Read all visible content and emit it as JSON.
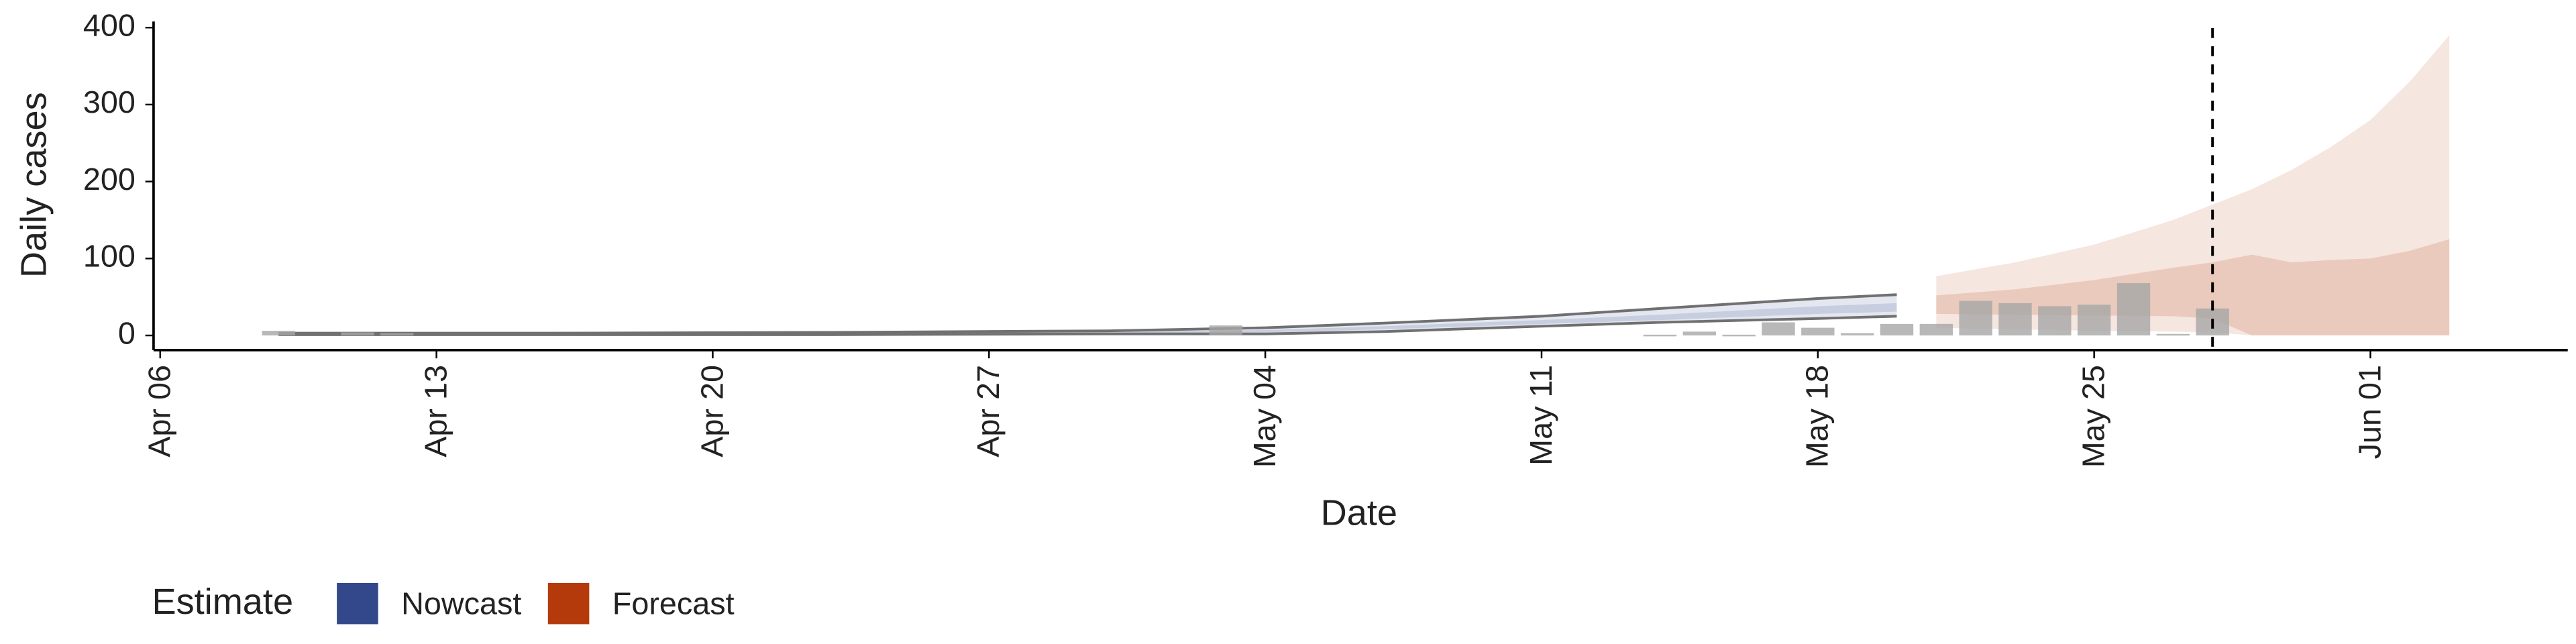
{
  "chart_data": {
    "type": "combo",
    "xlabel": "Date",
    "ylabel": "Daily cases",
    "legend_title": "Estimate",
    "xlim": [
      "Apr 06",
      "Jun 06"
    ],
    "xticks": [
      "Apr 06",
      "Apr 13",
      "Apr 20",
      "Apr 27",
      "May 04",
      "May 11",
      "May 18",
      "May 25",
      "Jun 01"
    ],
    "ylim": [
      -19,
      408
    ],
    "yticks": [
      0,
      100,
      200,
      300,
      400
    ],
    "vline": "May 28",
    "observed": {
      "color": "#a6a6a6",
      "x": [
        "Apr 09",
        "Apr 11",
        "Apr 12",
        "May 03",
        "May 14",
        "May 15",
        "May 16",
        "May 17",
        "May 18",
        "May 19",
        "May 20",
        "May 21",
        "May 22",
        "May 23",
        "May 24",
        "May 25",
        "May 26",
        "May 27",
        "May 28"
      ],
      "values": [
        6,
        4,
        3,
        13,
        1,
        5,
        1,
        17,
        10,
        3,
        15,
        15,
        45,
        42,
        38,
        40,
        68,
        2,
        35
      ]
    },
    "series": [
      {
        "name": "Nowcast",
        "color": "#32488a",
        "bound_color": "#707070",
        "x": [
          "Apr 09",
          "Apr 16",
          "Apr 23",
          "Apr 30",
          "May 04",
          "May 07",
          "May 11",
          "May 14",
          "May 18",
          "May 20"
        ],
        "upper_90": [
          3,
          3,
          4,
          6,
          10,
          16,
          25,
          35,
          48,
          53
        ],
        "lower_90": [
          1,
          1,
          1,
          2,
          2,
          5,
          12,
          17,
          22,
          25
        ],
        "upper_50": [
          2,
          2,
          3,
          5,
          7,
          12,
          20,
          27,
          38,
          42
        ],
        "lower_50": [
          1,
          1,
          2,
          3,
          4,
          8,
          15,
          20,
          28,
          31
        ]
      },
      {
        "name": "Forecast",
        "color": "#b53a0b",
        "x": [
          "May 21",
          "May 23",
          "May 25",
          "May 27",
          "May 28",
          "May 29",
          "May 30",
          "May 31",
          "Jun 01",
          "Jun 02",
          "Jun 03"
        ],
        "upper_90": [
          77,
          95,
          118,
          150,
          170,
          190,
          215,
          245,
          280,
          330,
          390
        ],
        "lower_90": [
          10,
          8,
          6,
          5,
          4,
          0,
          0,
          0,
          0,
          0,
          0
        ],
        "upper_50": [
          52,
          60,
          72,
          88,
          95,
          105,
          95,
          98,
          100,
          110,
          125
        ],
        "lower_50": [
          28,
          27,
          26,
          25,
          22,
          0,
          0,
          0,
          0,
          0,
          0
        ]
      }
    ]
  }
}
